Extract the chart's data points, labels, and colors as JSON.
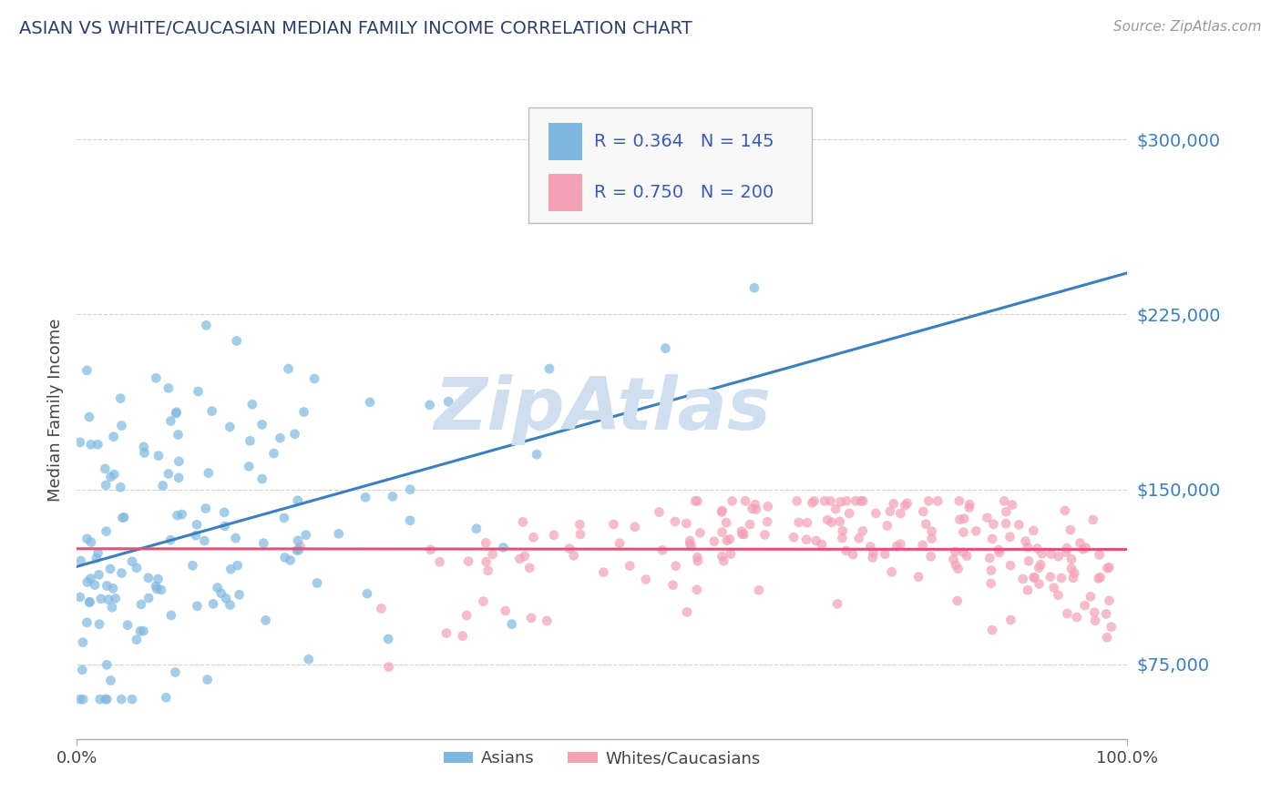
{
  "title": "ASIAN VS WHITE/CAUCASIAN MEDIAN FAMILY INCOME CORRELATION CHART",
  "source": "Source: ZipAtlas.com",
  "ylabel": "Median Family Income",
  "xlim": [
    0,
    100
  ],
  "ylim": [
    43000,
    325000
  ],
  "yticks": [
    75000,
    150000,
    225000,
    300000
  ],
  "ytick_labels": [
    "$75,000",
    "$150,000",
    "$225,000",
    "$300,000"
  ],
  "xtick_labels": [
    "0.0%",
    "100.0%"
  ],
  "asian_color": "#7eb8e0",
  "asian_line_color": "#3a7fc1",
  "white_color": "#f4a0b5",
  "white_line_color": "#e0527a",
  "asian_R": 0.364,
  "asian_N": 145,
  "white_R": 0.75,
  "white_N": 200,
  "legend_label_asian": "Asians",
  "legend_label_white": "Whites/Caucasians",
  "background_color": "#ffffff",
  "grid_color": "#c8c8c8",
  "title_color": "#2c3e6b",
  "source_color": "#999999",
  "legend_text_color": "#3a5abf",
  "watermark_text": "ZipAtlas",
  "watermark_color": "#d0dff0",
  "seed": 99
}
